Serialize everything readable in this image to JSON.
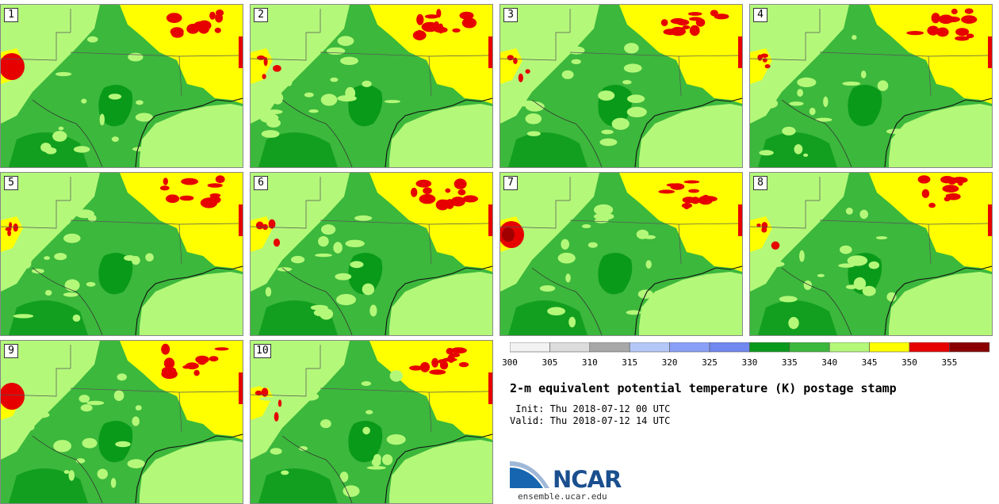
{
  "panels": [
    {
      "label": "1"
    },
    {
      "label": "2"
    },
    {
      "label": "3"
    },
    {
      "label": "4"
    },
    {
      "label": "5"
    },
    {
      "label": "6"
    },
    {
      "label": "7"
    },
    {
      "label": "8"
    },
    {
      "label": "9"
    },
    {
      "label": "10"
    }
  ],
  "legend": {
    "ticks": [
      "300",
      "305",
      "310",
      "315",
      "320",
      "325",
      "330",
      "335",
      "340",
      "345",
      "350",
      "355"
    ],
    "colors": [
      "#f2f2f2",
      "#dcdcdc",
      "#a8a8a8",
      "#b4c8f8",
      "#8aa0f8",
      "#7088f0",
      "#0a9a1a",
      "#3cb83c",
      "#b4f87a",
      "#ffff00",
      "#e60000",
      "#8a0000"
    ]
  },
  "title": "2-m equivalent potential temperature (K) postage stamp",
  "init": " Init: Thu 2018-07-12 00 UTC",
  "valid": "Valid: Thu 2018-07-12 14 UTC",
  "logo": {
    "name": "NCAR",
    "url": "ensemble.ucar.edu"
  },
  "palette": {
    "yellow": "#ffff00",
    "light_green": "#b4f87a",
    "green": "#3cb83c",
    "dark_green": "#0a9a1a",
    "red": "#e60000",
    "dark_red": "#a00000"
  }
}
